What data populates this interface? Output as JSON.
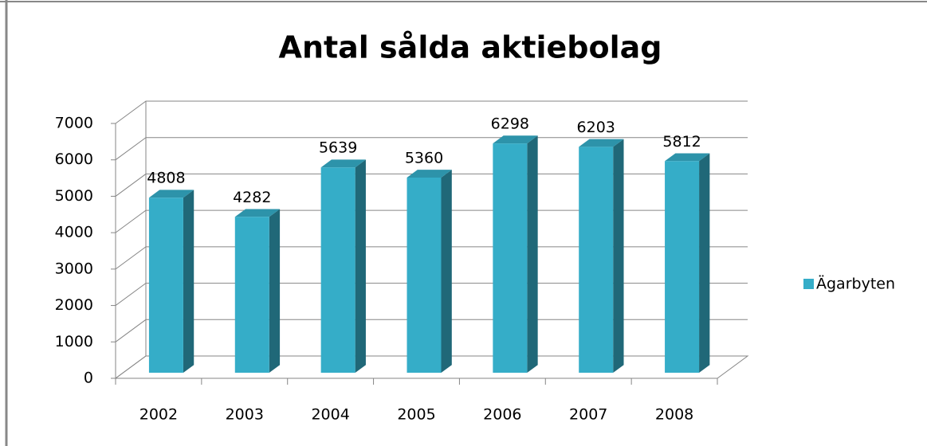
{
  "chart_data": {
    "type": "bar3d",
    "title": "Antal sålda aktiebolag",
    "categories": [
      "2002",
      "2003",
      "2004",
      "2005",
      "2006",
      "2007",
      "2008"
    ],
    "series": [
      {
        "name": "Ägarbyten",
        "color": "#35adc8",
        "values": [
          4808,
          4282,
          5639,
          5360,
          6298,
          6203,
          5812
        ]
      }
    ],
    "ylim": [
      0,
      7000
    ],
    "yticks": [
      0,
      1000,
      2000,
      3000,
      4000,
      5000,
      6000,
      7000
    ],
    "grid": true,
    "legend": "right"
  }
}
